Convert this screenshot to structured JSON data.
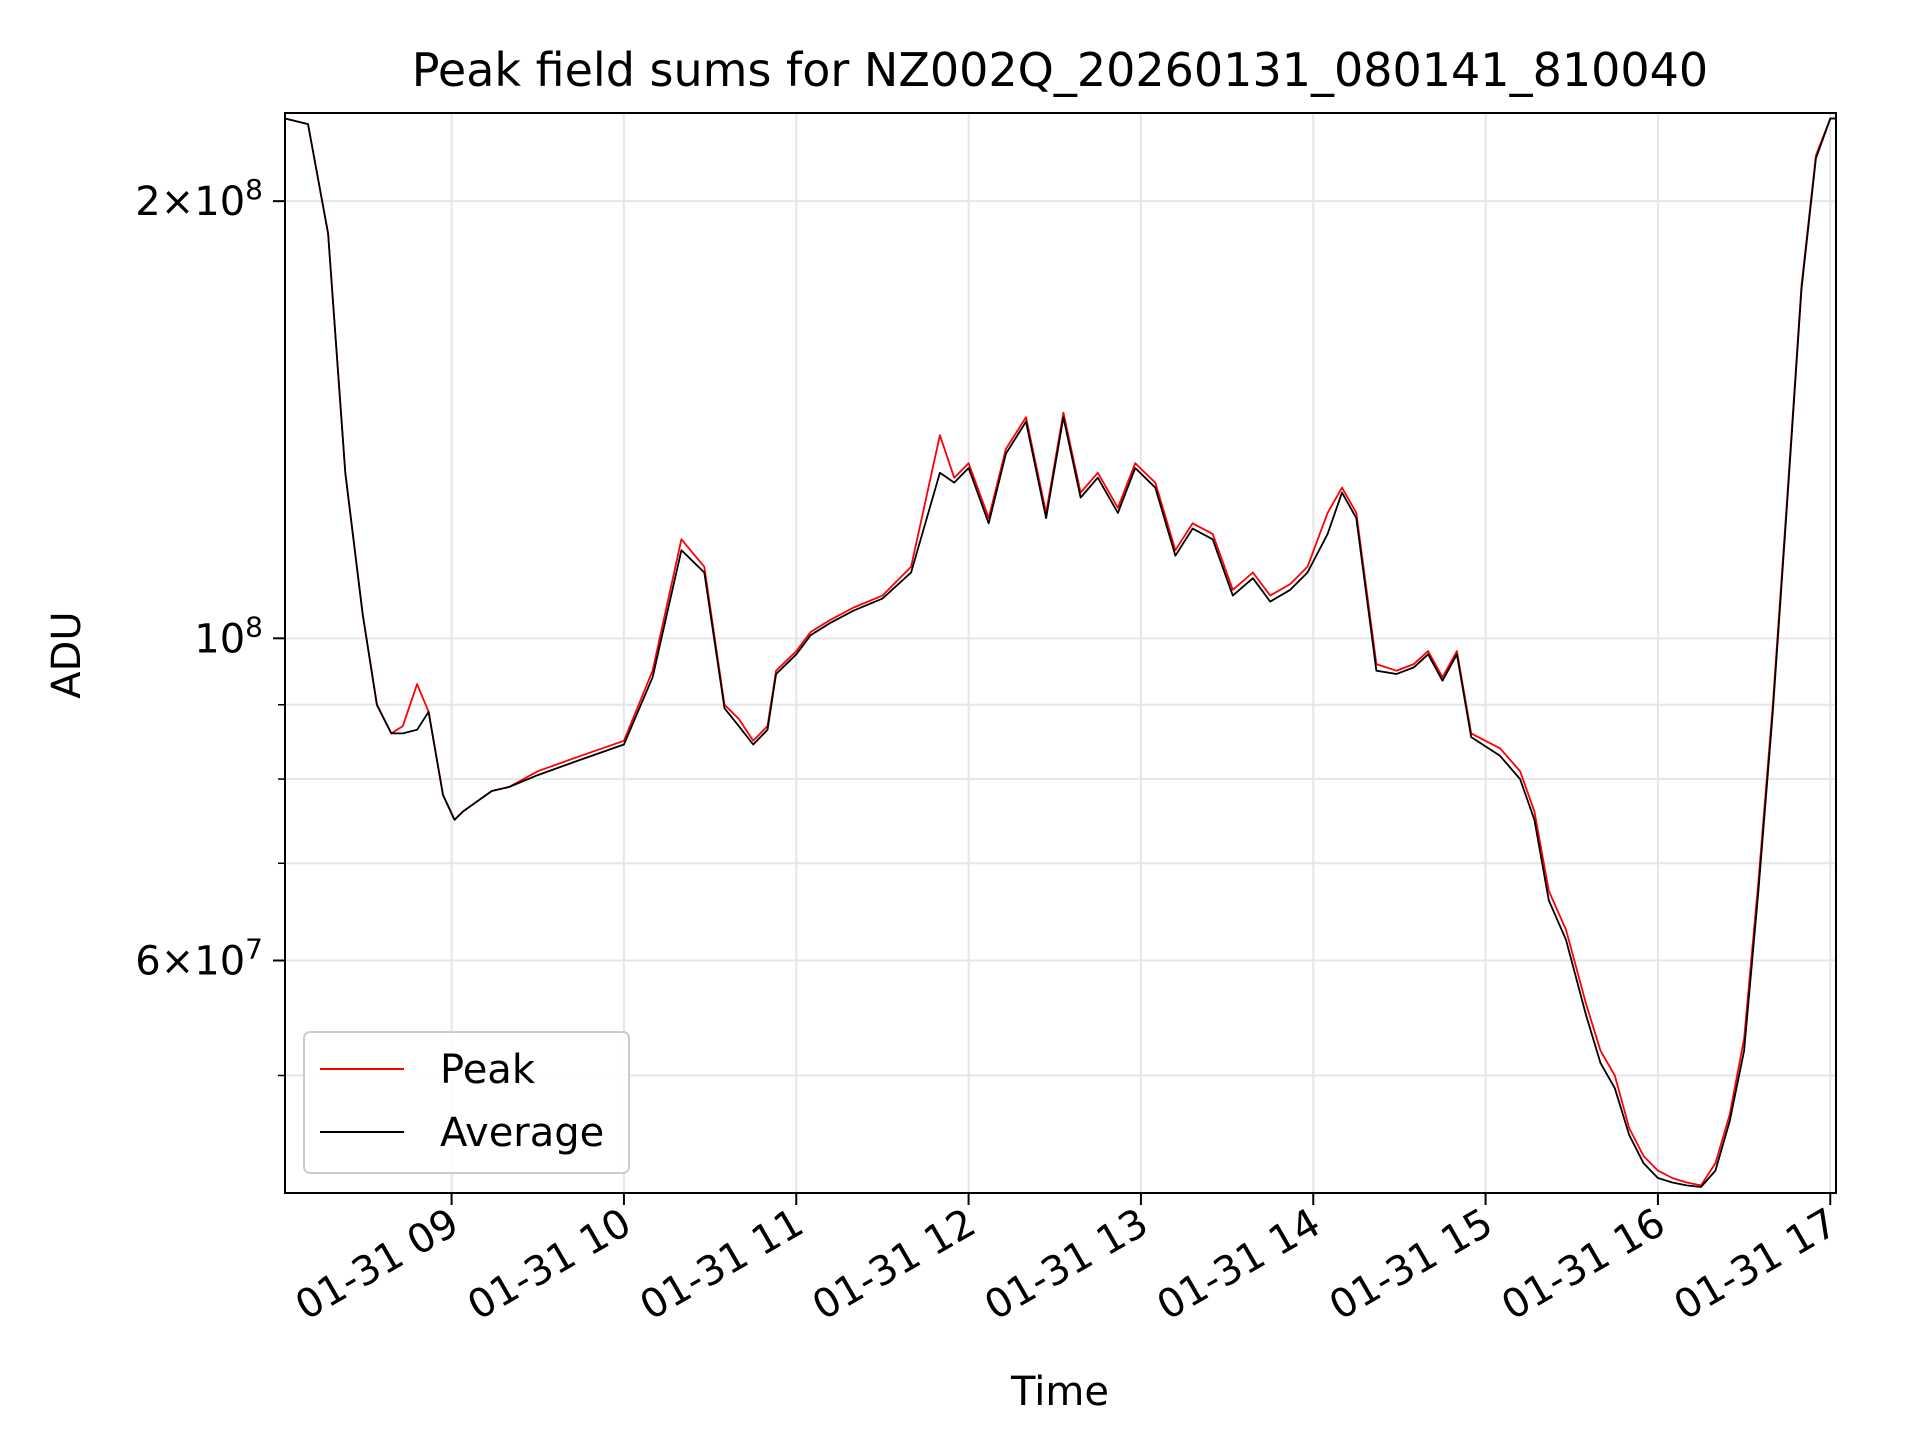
{
  "chart_data": {
    "type": "line",
    "title": "Peak field sums for NZ002Q_20260131_080141_810040",
    "xlabel": "Time",
    "ylabel": "ADU",
    "yscale": "log",
    "grid": true,
    "legend_position": "lower-left",
    "xlim": [
      "2026-01-31 08:02",
      "2026-01-31 17:02"
    ],
    "ylim": [
      41500000,
      230000000
    ],
    "x_ticks": [
      "01-31 09",
      "01-31 10",
      "01-31 11",
      "01-31 12",
      "01-31 13",
      "01-31 14",
      "01-31 15",
      "01-31 16",
      "01-31 17"
    ],
    "y_ticks": [
      "2 × 10^8",
      "10^8",
      "6 × 10^7"
    ],
    "y_tick_parts": [
      {
        "value": 200000000,
        "mantissa": "2",
        "times": "×",
        "base": "10",
        "exp": "8"
      },
      {
        "value": 100000000,
        "mantissa": "",
        "times": "",
        "base": "10",
        "exp": "8"
      },
      {
        "value": 60000000,
        "mantissa": "6",
        "times": "×",
        "base": "10",
        "exp": "7"
      }
    ],
    "colors": {
      "Peak": "#ff0000",
      "Average": "#000000"
    },
    "x": [
      "08:02",
      "08:10",
      "08:17",
      "08:23",
      "08:29",
      "08:34",
      "08:39",
      "08:43",
      "08:48",
      "08:52",
      "08:57",
      "09:01",
      "09:04",
      "09:08",
      "09:14",
      "09:20",
      "09:30",
      "09:45",
      "10:00",
      "10:10",
      "10:20",
      "10:28",
      "10:35",
      "10:40",
      "10:45",
      "10:50",
      "10:53",
      "11:00",
      "11:05",
      "11:12",
      "11:20",
      "11:30",
      "11:40",
      "11:50",
      "11:55",
      "12:00",
      "12:07",
      "12:13",
      "12:20",
      "12:27",
      "12:33",
      "12:39",
      "12:45",
      "12:52",
      "12:58",
      "13:05",
      "13:12",
      "13:18",
      "13:25",
      "13:32",
      "13:39",
      "13:45",
      "13:52",
      "13:58",
      "14:05",
      "14:10",
      "14:15",
      "14:22",
      "14:29",
      "14:35",
      "14:40",
      "14:45",
      "14:50",
      "14:55",
      "15:05",
      "15:12",
      "15:17",
      "15:22",
      "15:28",
      "15:35",
      "15:40",
      "15:45",
      "15:50",
      "15:55",
      "16:00",
      "16:05",
      "16:10",
      "16:15",
      "16:20",
      "16:25",
      "16:30",
      "16:35",
      "16:40",
      "16:45",
      "16:50",
      "16:55",
      "17:00",
      "17:02"
    ],
    "series": [
      {
        "name": "Peak",
        "values": [
          228000000,
          226000000,
          190000000,
          130000000,
          104000000,
          90000000,
          86000000,
          87000000,
          93000000,
          89000000,
          78000000,
          75000000,
          76000000,
          77000000,
          78500000,
          79000000,
          81000000,
          83000000,
          85000000,
          95000000,
          117000000,
          112000000,
          90000000,
          88000000,
          85000000,
          87000000,
          95000000,
          98000000,
          101000000,
          103000000,
          105000000,
          107000000,
          112000000,
          138000000,
          129000000,
          132000000,
          121000000,
          135000000,
          142000000,
          122000000,
          143000000,
          126000000,
          130000000,
          123000000,
          132000000,
          128000000,
          115000000,
          120000000,
          118000000,
          108000000,
          111000000,
          107000000,
          109000000,
          112000000,
          122000000,
          127000000,
          122000000,
          96000000,
          95000000,
          96000000,
          98000000,
          94000000,
          98000000,
          86000000,
          84000000,
          81000000,
          76000000,
          67000000,
          63000000,
          56000000,
          52000000,
          50000000,
          46000000,
          44000000,
          43000000,
          42500000,
          42200000,
          42000000,
          43500000,
          47000000,
          53000000,
          68000000,
          90000000,
          125000000,
          175000000,
          215000000,
          228000000,
          228000000
        ]
      },
      {
        "name": "Average",
        "values": [
          228000000,
          226000000,
          190000000,
          130000000,
          104000000,
          90000000,
          86000000,
          86000000,
          86500000,
          89000000,
          78000000,
          75000000,
          76000000,
          77000000,
          78500000,
          79000000,
          80500000,
          82500000,
          84500000,
          94000000,
          115000000,
          111000000,
          89500000,
          87000000,
          84500000,
          86500000,
          94500000,
          97500000,
          100500000,
          102500000,
          104500000,
          106500000,
          111000000,
          130000000,
          128000000,
          131000000,
          120000000,
          134000000,
          141000000,
          121000000,
          142000000,
          125000000,
          129000000,
          122000000,
          131000000,
          127000000,
          114000000,
          119000000,
          117000000,
          107000000,
          110000000,
          106000000,
          108000000,
          111000000,
          118000000,
          126000000,
          121000000,
          95000000,
          94500000,
          95500000,
          97500000,
          93500000,
          97500000,
          85500000,
          83000000,
          80000000,
          75000000,
          66000000,
          62000000,
          55000000,
          51000000,
          49000000,
          45500000,
          43500000,
          42500000,
          42200000,
          42000000,
          41900000,
          43000000,
          46500000,
          52000000,
          67000000,
          89000000,
          124000000,
          174000000,
          214000000,
          228000000,
          228000000
        ]
      }
    ]
  }
}
